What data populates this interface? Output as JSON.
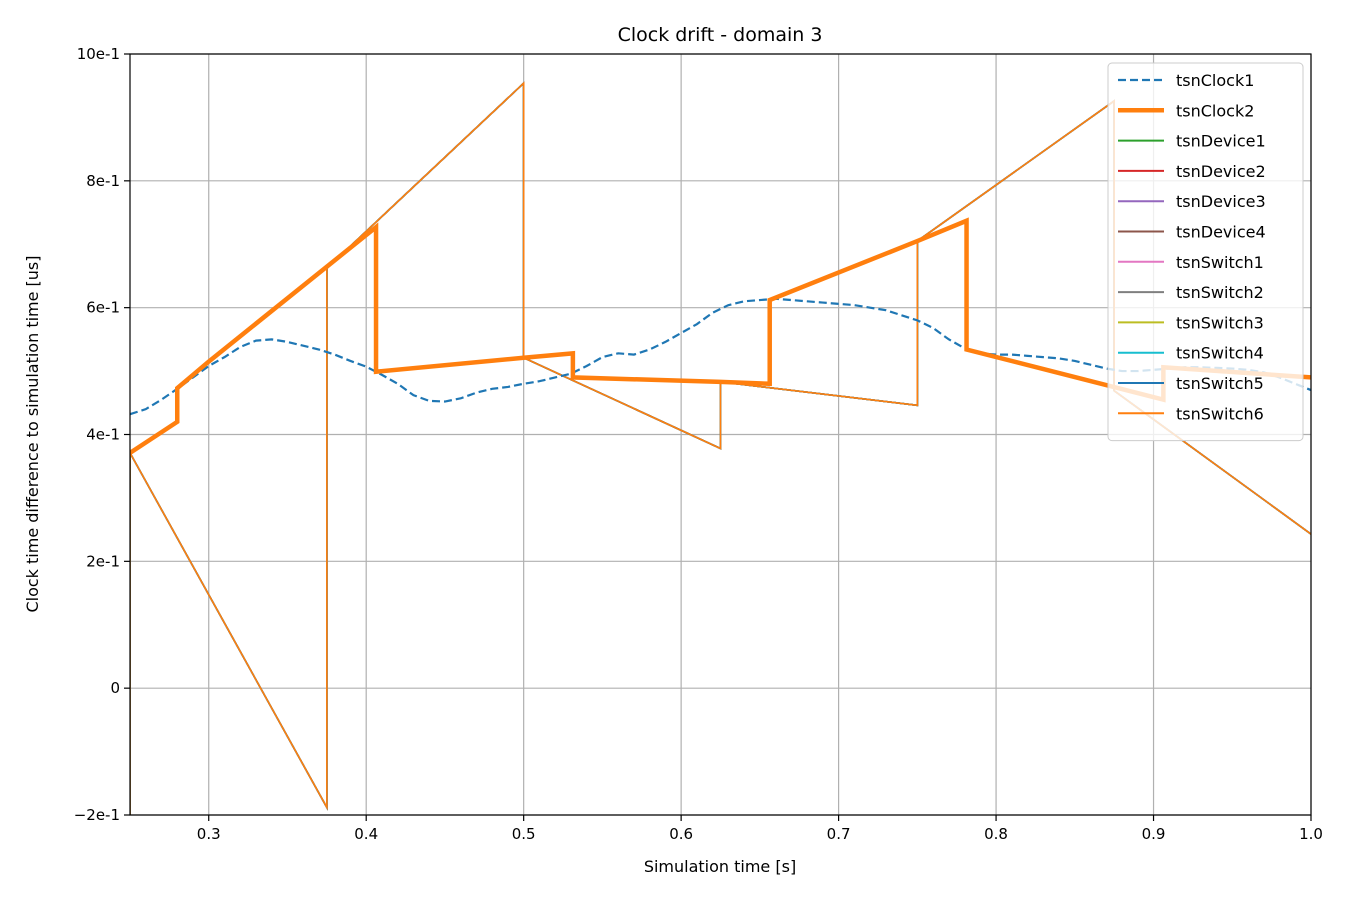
{
  "chart_data": {
    "type": "line",
    "title": "Clock drift - domain 3",
    "xlabel": "Simulation time [s]",
    "ylabel": "Clock time difference to simulation time [us]",
    "xlim": [
      0.25,
      1.0
    ],
    "ylim": [
      -0.2,
      1.0
    ],
    "grid": true,
    "legend_position": "top-right",
    "x_ticks": [
      {
        "value": 0.3,
        "label": "0.3"
      },
      {
        "value": 0.4,
        "label": "0.4"
      },
      {
        "value": 0.5,
        "label": "0.5"
      },
      {
        "value": 0.6,
        "label": "0.6"
      },
      {
        "value": 0.7,
        "label": "0.7"
      },
      {
        "value": 0.8,
        "label": "0.8"
      },
      {
        "value": 0.9,
        "label": "0.9"
      },
      {
        "value": 1.0,
        "label": "1.0"
      }
    ],
    "y_ticks": [
      {
        "value": -0.2,
        "label": "−2e-1"
      },
      {
        "value": 0.0,
        "label": "0"
      },
      {
        "value": 0.2,
        "label": "2e-1"
      },
      {
        "value": 0.4,
        "label": "4e-1"
      },
      {
        "value": 0.6,
        "label": "6e-1"
      },
      {
        "value": 0.8,
        "label": "8e-1"
      },
      {
        "value": 1.0,
        "label": "10e-1"
      }
    ],
    "series": [
      {
        "name": "tsnClock1",
        "color": "#1f77b4",
        "dash": "dashed",
        "width": 2.2,
        "x": [
          0.25,
          0.26,
          0.27,
          0.28,
          0.29,
          0.3,
          0.31,
          0.32,
          0.33,
          0.34,
          0.35,
          0.36,
          0.37,
          0.38,
          0.39,
          0.4,
          0.41,
          0.42,
          0.43,
          0.44,
          0.45,
          0.46,
          0.47,
          0.48,
          0.49,
          0.5,
          0.51,
          0.52,
          0.53,
          0.54,
          0.55,
          0.56,
          0.57,
          0.58,
          0.59,
          0.6,
          0.61,
          0.62,
          0.63,
          0.64,
          0.65,
          0.66,
          0.67,
          0.68,
          0.69,
          0.7,
          0.71,
          0.72,
          0.73,
          0.74,
          0.75,
          0.76,
          0.77,
          0.78,
          0.79,
          0.8,
          0.81,
          0.82,
          0.83,
          0.84,
          0.85,
          0.86,
          0.87,
          0.88,
          0.89,
          0.9,
          0.91,
          0.92,
          0.93,
          0.94,
          0.95,
          0.96,
          0.97,
          0.98,
          0.99,
          1.0
        ],
        "y": [
          0.432,
          0.44,
          0.455,
          0.472,
          0.49,
          0.508,
          0.522,
          0.538,
          0.548,
          0.55,
          0.546,
          0.54,
          0.534,
          0.526,
          0.516,
          0.507,
          0.494,
          0.48,
          0.462,
          0.453,
          0.452,
          0.457,
          0.466,
          0.472,
          0.475,
          0.48,
          0.484,
          0.49,
          0.496,
          0.508,
          0.522,
          0.528,
          0.526,
          0.534,
          0.546,
          0.56,
          0.574,
          0.592,
          0.604,
          0.61,
          0.612,
          0.614,
          0.612,
          0.61,
          0.608,
          0.606,
          0.604,
          0.6,
          0.596,
          0.588,
          0.58,
          0.568,
          0.55,
          0.536,
          0.528,
          0.526,
          0.526,
          0.524,
          0.522,
          0.52,
          0.516,
          0.51,
          0.504,
          0.5,
          0.5,
          0.502,
          0.504,
          0.506,
          0.506,
          0.505,
          0.504,
          0.502,
          0.498,
          0.49,
          0.48,
          0.47
        ]
      },
      {
        "name": "tsnClock2",
        "color": "#ff7f0e",
        "dash": "solid",
        "width": 4.5,
        "x": [
          0.25,
          0.28,
          0.28,
          0.3,
          0.40625,
          0.40625,
          0.5,
          0.53125,
          0.53125,
          0.625,
          0.65625,
          0.65625,
          0.75,
          0.78125,
          0.78125,
          0.90625,
          0.90625,
          1.0
        ],
        "y": [
          0.371,
          0.42,
          0.473,
          0.515,
          0.727,
          0.499,
          0.521,
          0.528,
          0.49,
          0.483,
          0.48,
          0.612,
          0.705,
          0.737,
          0.534,
          0.455,
          0.506,
          0.49
        ]
      },
      {
        "name": "tsnDevice1",
        "color": "#2ca02c",
        "dash": "solid",
        "width": 1.6,
        "x": [
          0.25,
          0.25,
          0.375,
          0.375,
          0.5,
          0.5,
          0.625,
          0.625,
          0.75,
          0.75,
          0.875,
          0.875,
          1.0
        ],
        "y": [
          -0.2,
          0.371,
          -0.188,
          0.662,
          0.954,
          0.521,
          0.378,
          0.483,
          0.446,
          0.705,
          0.926,
          0.469,
          0.243
        ]
      },
      {
        "name": "tsnDevice2",
        "color": "#d62728",
        "dash": "solid",
        "width": 1.6,
        "x": [
          0.25,
          0.25,
          0.375,
          0.375,
          0.5,
          0.5,
          0.625,
          0.625,
          0.75,
          0.75,
          0.875,
          0.875,
          1.0
        ],
        "y": [
          -0.2,
          0.371,
          -0.188,
          0.662,
          0.954,
          0.521,
          0.378,
          0.483,
          0.446,
          0.705,
          0.926,
          0.469,
          0.243
        ]
      },
      {
        "name": "tsnDevice3",
        "color": "#9467bd",
        "dash": "solid",
        "width": 1.6,
        "x": [
          0.25,
          0.25,
          0.375,
          0.375,
          0.5,
          0.5,
          0.625,
          0.625,
          0.75,
          0.75,
          0.875,
          0.875,
          1.0
        ],
        "y": [
          -0.2,
          0.371,
          -0.188,
          0.662,
          0.954,
          0.521,
          0.378,
          0.483,
          0.446,
          0.705,
          0.926,
          0.469,
          0.243
        ]
      },
      {
        "name": "tsnDevice4",
        "color": "#8c564b",
        "dash": "solid",
        "width": 1.6,
        "x": [
          0.25,
          0.25,
          0.375,
          0.375,
          0.5,
          0.5,
          0.625,
          0.625,
          0.75,
          0.75,
          0.875,
          0.875,
          1.0
        ],
        "y": [
          -0.2,
          0.371,
          -0.188,
          0.662,
          0.954,
          0.521,
          0.378,
          0.483,
          0.446,
          0.705,
          0.926,
          0.469,
          0.243
        ]
      },
      {
        "name": "tsnSwitch1",
        "color": "#e377c2",
        "dash": "solid",
        "width": 1.6,
        "x": [
          0.25,
          0.25,
          0.375,
          0.375,
          0.5,
          0.5,
          0.625,
          0.625,
          0.75,
          0.75,
          0.875,
          0.875,
          1.0
        ],
        "y": [
          -0.2,
          0.371,
          -0.188,
          0.662,
          0.954,
          0.521,
          0.378,
          0.483,
          0.446,
          0.705,
          0.926,
          0.469,
          0.243
        ]
      },
      {
        "name": "tsnSwitch2",
        "color": "#7f7f7f",
        "dash": "solid",
        "width": 1.6,
        "x": [
          0.25,
          0.25,
          0.375,
          0.375,
          0.5,
          0.5,
          0.625,
          0.625,
          0.75,
          0.75,
          0.875,
          0.875,
          1.0
        ],
        "y": [
          -0.2,
          0.371,
          -0.188,
          0.662,
          0.954,
          0.521,
          0.378,
          0.483,
          0.446,
          0.705,
          0.926,
          0.469,
          0.243
        ]
      },
      {
        "name": "tsnSwitch3",
        "color": "#bcbd22",
        "dash": "solid",
        "width": 1.6,
        "x": [
          0.25,
          0.25,
          0.375,
          0.375,
          0.5,
          0.5,
          0.625,
          0.625,
          0.75,
          0.75,
          0.875,
          0.875,
          1.0
        ],
        "y": [
          -0.2,
          0.371,
          -0.188,
          0.662,
          0.954,
          0.521,
          0.378,
          0.483,
          0.446,
          0.705,
          0.926,
          0.469,
          0.243
        ]
      },
      {
        "name": "tsnSwitch4",
        "color": "#17becf",
        "dash": "solid",
        "width": 1.6,
        "x": [
          0.25,
          0.25,
          0.375,
          0.375,
          0.5,
          0.5,
          0.625,
          0.625,
          0.75,
          0.75,
          0.875,
          0.875,
          1.0
        ],
        "y": [
          -0.2,
          0.371,
          -0.188,
          0.662,
          0.954,
          0.521,
          0.378,
          0.483,
          0.446,
          0.705,
          0.926,
          0.469,
          0.243
        ]
      },
      {
        "name": "tsnSwitch5",
        "color": "#1f77b4",
        "dash": "solid",
        "width": 1.6,
        "x": [
          0.25,
          0.25,
          0.375,
          0.375,
          0.5,
          0.5,
          0.625,
          0.625,
          0.75,
          0.75,
          0.875,
          0.875,
          1.0
        ],
        "y": [
          -0.2,
          0.371,
          -0.188,
          0.662,
          0.954,
          0.521,
          0.378,
          0.483,
          0.446,
          0.705,
          0.926,
          0.469,
          0.243
        ]
      },
      {
        "name": "tsnSwitch6",
        "color": "#ff7f0e",
        "dash": "solid",
        "width": 1.6,
        "x": [
          0.25,
          0.25,
          0.375,
          0.375,
          0.5,
          0.5,
          0.625,
          0.625,
          0.75,
          0.75,
          0.875,
          0.875,
          1.0
        ],
        "y": [
          -0.2,
          0.371,
          -0.188,
          0.662,
          0.954,
          0.521,
          0.378,
          0.483,
          0.446,
          0.705,
          0.926,
          0.469,
          0.243
        ]
      }
    ]
  }
}
